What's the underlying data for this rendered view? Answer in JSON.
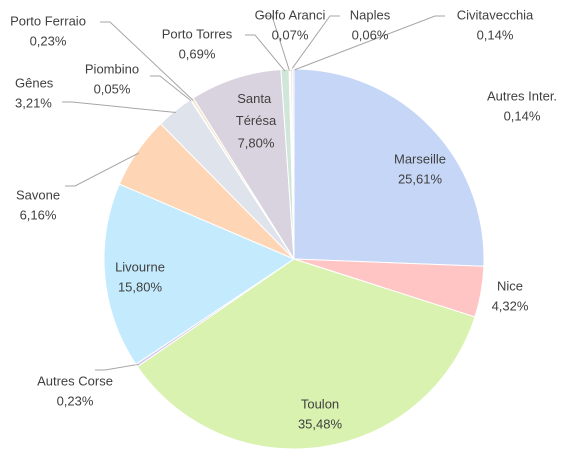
{
  "chart_data": {
    "type": "pie",
    "categories": [
      "Marseille",
      "Nice",
      "Toulon",
      "Autres Corse",
      "Livourne",
      "Savone",
      "Gênes",
      "Piombino",
      "Porto Ferraio",
      "Santa Térésa",
      "Porto Torres",
      "Golfo Aranci",
      "Naples",
      "Civitavecchia",
      "Autres Inter."
    ],
    "values": [
      25.61,
      4.32,
      35.48,
      0.23,
      15.8,
      6.16,
      3.21,
      0.05,
      0.23,
      7.8,
      0.69,
      0.07,
      0.06,
      0.14,
      0.14
    ],
    "value_labels": [
      "25,61%",
      "4,32%",
      "35,48%",
      "0,23%",
      "15,80%",
      "6,16%",
      "3,21%",
      "0,05%",
      "0,23%",
      "7,80%",
      "0,69%",
      "0,07%",
      "0,06%",
      "0,14%",
      "0,14%"
    ],
    "colors": [
      "#c6d6f7",
      "#ffc4c4",
      "#d9f2b0",
      "#d4c8ee",
      "#c4ebfd",
      "#fed6b6",
      "#dfe3ec",
      "#e6f0d0",
      "#f2e6c8",
      "#d9d3df",
      "#cfe6d8",
      "#d8e8f0",
      "#f6d0c8",
      "#e8d8c8",
      "#dcdce8"
    ]
  }
}
